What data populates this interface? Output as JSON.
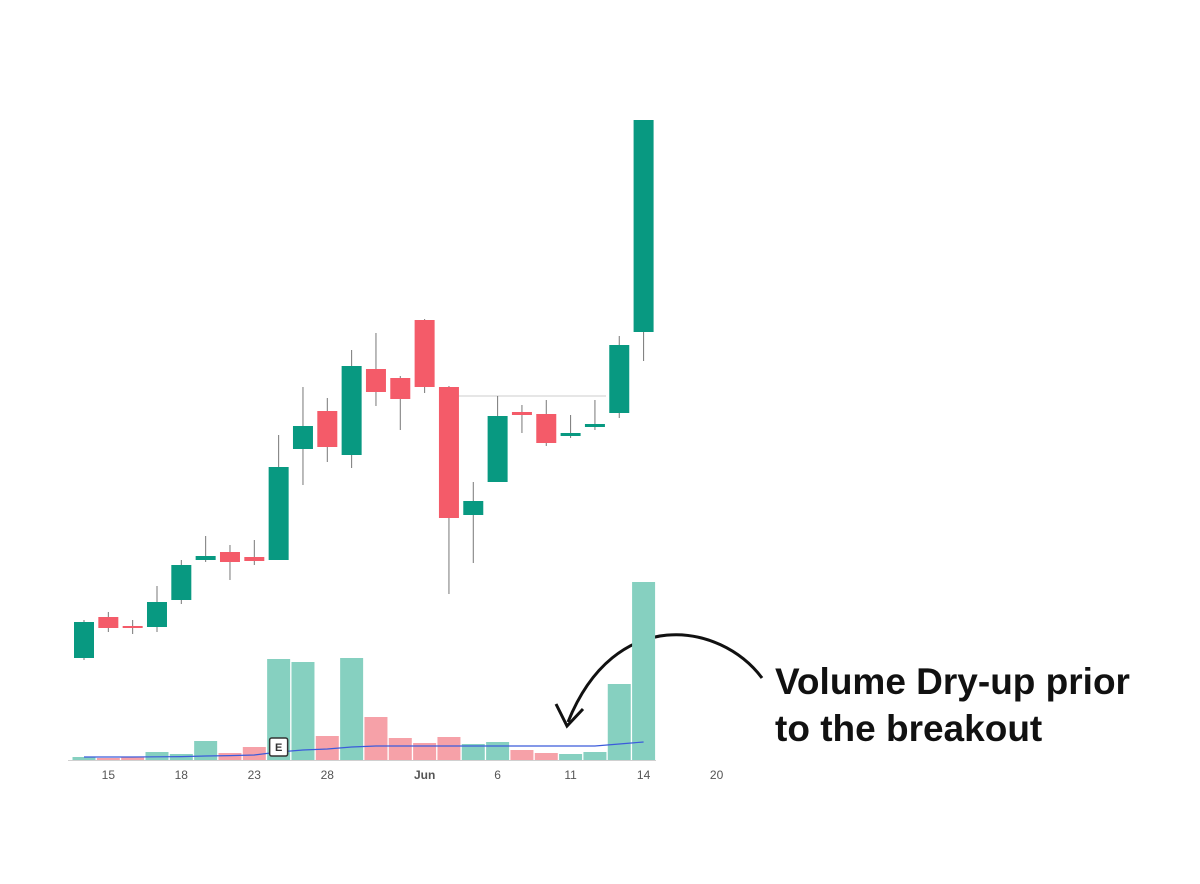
{
  "chart_data": {
    "type": "candlestick",
    "categories": [
      null,
      "15",
      null,
      null,
      "18",
      null,
      null,
      "23",
      null,
      null,
      "28",
      null,
      null,
      null,
      "Jun",
      null,
      null,
      "6",
      null,
      null,
      "11",
      null,
      null,
      "14",
      null,
      null,
      "20"
    ],
    "open": [
      14.2,
      18.3,
      17.4,
      17.3,
      20,
      24,
      24.8,
      24.3,
      24,
      35.1,
      38.9,
      34.5,
      43.1,
      42.2,
      48,
      41.3,
      28.5,
      31.8,
      38.8,
      38.6,
      36.4,
      37.3,
      38.7,
      46.8,
      null,
      null,
      null
    ],
    "high": [
      18,
      18.8,
      18,
      21.4,
      24,
      26.4,
      25.5,
      26,
      36.5,
      41.3,
      40.2,
      45,
      46.7,
      42.4,
      48.1,
      41.4,
      31.8,
      40.4,
      39.5,
      40,
      38.5,
      40,
      46.4,
      68,
      null,
      null,
      null
    ],
    "low": [
      14,
      16.8,
      16.6,
      16.8,
      19.6,
      23.8,
      22,
      23.5,
      24,
      31.5,
      33.8,
      33.2,
      39.4,
      37,
      40.7,
      20.6,
      23.7,
      31.8,
      36.7,
      35.4,
      36.2,
      37,
      38.2,
      43.9,
      null,
      null,
      null
    ],
    "close": [
      17.8,
      17.2,
      17.3,
      19.8,
      23.5,
      24.4,
      23.8,
      23.9,
      33.3,
      37.4,
      35.3,
      43.4,
      40.8,
      40.1,
      41.3,
      28.2,
      29.9,
      38.4,
      38.5,
      35.7,
      36.7,
      37.6,
      45.5,
      68,
      null,
      null,
      null
    ],
    "volume": [
      1.5,
      1,
      1.5,
      4,
      3,
      9.5,
      3.5,
      6.5,
      50.5,
      49,
      12,
      51,
      21.5,
      11,
      8.5,
      11.5,
      8,
      9,
      5,
      3.5,
      3,
      4,
      38,
      89,
      null,
      null,
      null
    ],
    "volume_ma": [
      1.5,
      1.5,
      1.5,
      1.6,
      1.7,
      2,
      2.2,
      2.5,
      4,
      5,
      5.5,
      6.5,
      7,
      7,
      7,
      7,
      7,
      7,
      7,
      7,
      7,
      7,
      8,
      9,
      null,
      null,
      null
    ],
    "ylim": [
      10,
      70
    ],
    "volume_lim": [
      0,
      100
    ],
    "up_color": "#089981",
    "down_color": "#f45b69",
    "volume_up_color": "#86d0c0",
    "volume_down_color": "#f6a1a8",
    "ma_color": "#3b5bdb",
    "earnings_marker": {
      "index": 8,
      "label": "E"
    },
    "annotation": [
      "Volume Dry-up prior",
      "to the breakout"
    ]
  }
}
